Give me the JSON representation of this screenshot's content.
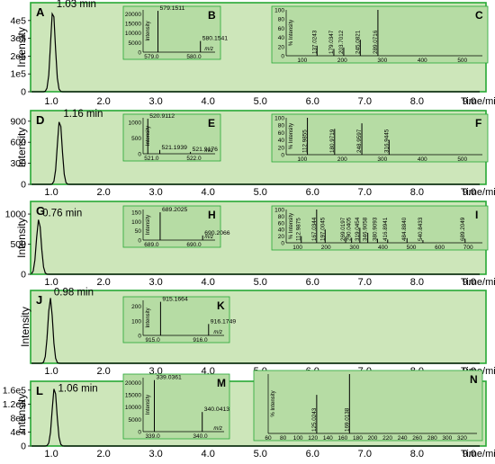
{
  "figure": {
    "x_unit_label": "Time/min",
    "y_axis_label": "Intensity",
    "x_ticks": [
      "1.0",
      "2.0",
      "3.0",
      "4.0",
      "5.0",
      "6.0",
      "7.0",
      "8.0",
      "9.0"
    ],
    "bg_color": "#cde6ba",
    "inset_bg_color": "#b6dca4",
    "border_color": "#27a835",
    "line_color": "#000000"
  },
  "chart_data": [
    {
      "type": "line",
      "panel": "A",
      "peak_time_label": "1.03 min",
      "peak_time": 1.03,
      "peak_height": 460000.0,
      "y_ticks": [
        "4e5",
        "3e5",
        "2e5",
        "1e5",
        "0"
      ],
      "y_tick_values": [
        400000.0,
        300000.0,
        200000.0,
        100000.0,
        0
      ],
      "ymax": 480000.0,
      "ms1": {
        "label": "B",
        "xlim": [
          578.8,
          580.5
        ],
        "x_ticks": [
          "579.0",
          "580.0"
        ],
        "x_tick_values": [
          579.0,
          580.0
        ],
        "y_ticks": [
          "20000",
          "15000",
          "10000",
          "5000",
          "0"
        ],
        "y_tick_values": [
          20000,
          15000,
          10000,
          5000,
          0
        ],
        "ymax": 22000,
        "x_unit": "m/z",
        "y_label": "Intensity",
        "peaks": [
          {
            "mz": 579.1511,
            "h": 21500,
            "label": "579.1511"
          },
          {
            "mz": 580.1541,
            "h": 5800,
            "label": "580.1541"
          }
        ]
      },
      "ms2": {
        "label": "C",
        "xlim": [
          60,
          550
        ],
        "x_ticks": [
          "100",
          "200",
          "300",
          "400",
          "500"
        ],
        "x_tick_values": [
          100,
          200,
          300,
          400,
          500
        ],
        "y_ticks": [
          "100",
          "80",
          "60",
          "40",
          "20",
          "0"
        ],
        "y_tick_values": [
          100,
          80,
          60,
          40,
          20,
          0
        ],
        "ymax": 100,
        "y_label": "% Intensity",
        "peaks": [
          {
            "mz": 137.0243,
            "h": 22,
            "label": "137.0243"
          },
          {
            "mz": 179.0347,
            "h": 15,
            "label": "179.0347"
          },
          {
            "mz": 203.7012,
            "h": 18,
            "label": "203.7012"
          },
          {
            "mz": 245.0821,
            "h": 35,
            "label": "245.0821"
          },
          {
            "mz": 289.0716,
            "h": 100,
            "label": "289.0716"
          }
        ]
      }
    },
    {
      "type": "line",
      "panel": "D",
      "peak_time_label": "1.16 min",
      "peak_time": 1.16,
      "peak_height": 920,
      "y_ticks": [
        "900",
        "600",
        "300",
        "0"
      ],
      "y_tick_values": [
        900,
        600,
        300,
        0
      ],
      "ymax": 1000,
      "ms1": {
        "label": "E",
        "xlim": [
          520.8,
          522.5
        ],
        "x_ticks": [
          "521.0",
          "522.0"
        ],
        "x_tick_values": [
          521.0,
          522.0
        ],
        "y_ticks": [
          "1000",
          "500",
          "0"
        ],
        "y_tick_values": [
          1000,
          500,
          0
        ],
        "ymax": 1150,
        "x_unit": "m/z",
        "y_label": "Intensity",
        "peaks": [
          {
            "mz": 520.9112,
            "h": 1120,
            "label": "520.9112"
          },
          {
            "mz": 521.1939,
            "h": 120,
            "label": "521.1939"
          },
          {
            "mz": 521.9176,
            "h": 60,
            "label": "521.9176"
          }
        ]
      },
      "ms2": {
        "label": "F",
        "xlim": [
          60,
          550
        ],
        "x_ticks": [
          "100",
          "200",
          "300",
          "400",
          "500"
        ],
        "x_tick_values": [
          100,
          200,
          300,
          400,
          500
        ],
        "y_ticks": [
          "100",
          "80",
          "60",
          "40",
          "20",
          "0"
        ],
        "y_tick_values": [
          100,
          80,
          60,
          40,
          20,
          0
        ],
        "ymax": 100,
        "y_label": "% Intensity",
        "peaks": [
          {
            "mz": 112.9855,
            "h": 100,
            "label": "112.9855"
          },
          {
            "mz": 180.9719,
            "h": 70,
            "label": "180.9719"
          },
          {
            "mz": 248.9597,
            "h": 85,
            "label": "248.9597"
          },
          {
            "mz": 316.9445,
            "h": 40,
            "label": "316.9445"
          }
        ]
      }
    },
    {
      "type": "line",
      "panel": "G",
      "peak_time_label": "0.76 min",
      "peak_time": 0.76,
      "peak_height": 920,
      "y_ticks": [
        "1000",
        "500",
        "0"
      ],
      "y_tick_values": [
        1000,
        500,
        0
      ],
      "ymax": 1150,
      "ms1": {
        "label": "H",
        "xlim": [
          688.8,
          690.5
        ],
        "x_ticks": [
          "689.0",
          "690.0"
        ],
        "x_tick_values": [
          689.0,
          690.0
        ],
        "y_ticks": [
          "150",
          "100",
          "50",
          "0"
        ],
        "y_tick_values": [
          150,
          100,
          50,
          0
        ],
        "ymax": 165,
        "x_unit": "m/z",
        "y_label": "Intensity",
        "peaks": [
          {
            "mz": 689.2025,
            "h": 150,
            "label": "689.2025"
          },
          {
            "mz": 690.2066,
            "h": 25,
            "label": "690.2066"
          }
        ]
      },
      "ms2": {
        "label": "I",
        "xlim": [
          60,
          750
        ],
        "x_ticks": [
          "100",
          "200",
          "300",
          "400",
          "500",
          "600",
          "700"
        ],
        "x_tick_values": [
          100,
          200,
          300,
          400,
          500,
          600,
          700
        ],
        "y_ticks": [
          "100",
          "80",
          "60",
          "40",
          "20",
          "0"
        ],
        "y_tick_values": [
          100,
          80,
          60,
          40,
          20,
          0
        ],
        "ymax": 100,
        "y_label": "% Intensity",
        "peaks": [
          {
            "mz": 112.9875,
            "h": 20,
            "label": "112.9875"
          },
          {
            "mz": 167.0344,
            "h": 100,
            "label": "167.0344"
          },
          {
            "mz": 197.0045,
            "h": 40,
            "label": "197.0045"
          },
          {
            "mz": 269.0197,
            "h": 18,
            "label": "269.0197"
          },
          {
            "mz": 290.0405,
            "h": 15,
            "label": "290.0405"
          },
          {
            "mz": 319.0454,
            "h": 45,
            "label": "319.0454"
          },
          {
            "mz": 346.9058,
            "h": 30,
            "label": "346.9058"
          },
          {
            "mz": 380.9093,
            "h": 12,
            "label": "380.9093"
          },
          {
            "mz": 416.8941,
            "h": 10,
            "label": "416.8941"
          },
          {
            "mz": 484.884,
            "h": 14,
            "label": "484.8840"
          },
          {
            "mz": 540.8433,
            "h": 8,
            "label": "540.8433"
          },
          {
            "mz": 689.2049,
            "h": 12,
            "label": "689.2049"
          }
        ]
      }
    },
    {
      "type": "line",
      "panel": "J",
      "peak_time_label": "0.98 min",
      "peak_time": 0.98,
      "peak_height": 3400,
      "y_ticks": [],
      "y_tick_values": [],
      "ymax": 3600,
      "ms1": {
        "label": "K",
        "xlim": [
          914.8,
          916.5
        ],
        "x_ticks": [
          "915.0",
          "916.0"
        ],
        "x_tick_values": [
          915.0,
          916.0
        ],
        "y_ticks": [
          "200",
          "100",
          "0"
        ],
        "y_tick_values": [
          200,
          100,
          0
        ],
        "ymax": 240,
        "x_unit": "m/z",
        "y_label": "Intensity",
        "peaks": [
          {
            "mz": 915.1664,
            "h": 230,
            "label": "915.1664"
          },
          {
            "mz": 916.1749,
            "h": 78,
            "label": "916.1749"
          }
        ]
      },
      "ms2": null
    },
    {
      "type": "line",
      "panel": "L",
      "peak_time_label": "1.06 min",
      "peak_time": 1.06,
      "peak_height": 168000.0,
      "y_ticks": [
        "1.6e5",
        "1.2e5",
        "8e4",
        "4e4",
        "0"
      ],
      "y_tick_values": [
        160000.0,
        120000.0,
        80000.0,
        40000.0,
        0
      ],
      "ymax": 175000.0,
      "ms1": {
        "label": "M",
        "xlim": [
          338.8,
          340.5
        ],
        "x_ticks": [
          "339.0",
          "340.0"
        ],
        "x_tick_values": [
          339.0,
          340.0
        ],
        "y_ticks": [
          "20000",
          "15000",
          "10000",
          "5000",
          "0"
        ],
        "y_tick_values": [
          20000,
          15000,
          10000,
          5000,
          0
        ],
        "ymax": 22000,
        "x_unit": "m/z",
        "y_label": "Intensity",
        "peaks": [
          {
            "mz": 339.0361,
            "h": 21000,
            "label": "339.0361"
          },
          {
            "mz": 340.0413,
            "h": 8000,
            "label": "340.0413"
          }
        ]
      },
      "ms2": {
        "label": "N",
        "xlim": [
          60,
          340
        ],
        "x_ticks": [
          "60",
          "80",
          "100",
          "120",
          "140",
          "160",
          "180",
          "200",
          "220",
          "240",
          "260",
          "280",
          "300",
          "320"
        ],
        "x_tick_values": [
          60,
          80,
          100,
          120,
          140,
          160,
          180,
          200,
          220,
          240,
          260,
          280,
          300,
          320
        ],
        "y_ticks": [],
        "y_tick_values": [],
        "ymax": 100,
        "y_label": "% Intensity",
        "peaks": [
          {
            "mz": 125.0243,
            "h": 65,
            "label": "125.0243"
          },
          {
            "mz": 169.0138,
            "h": 100,
            "label": "169.0138"
          }
        ]
      }
    }
  ]
}
